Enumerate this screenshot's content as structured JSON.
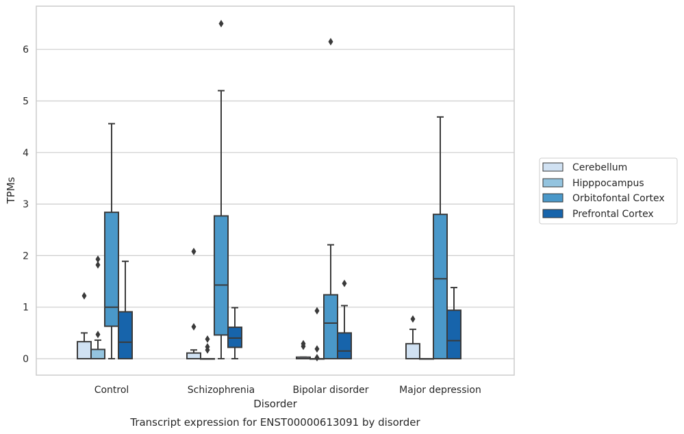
{
  "chart_data": {
    "type": "box",
    "title": "Transcript expression for ENST00000613091 by disorder",
    "xlabel": "Disorder",
    "ylabel": "TPMs",
    "ylim": [
      -0.32,
      6.85
    ],
    "y_ticks": [
      0,
      1,
      2,
      3,
      4,
      5,
      6
    ],
    "grid": "horizontal",
    "legend_position": "right",
    "categories": [
      "Control",
      "Schizophrenia",
      "Bipolar disorder",
      "Major depression"
    ],
    "series": [
      {
        "name": "Cerebellum",
        "color": "#d0e1f2",
        "boxes": [
          {
            "q1": 0,
            "median": 0,
            "q3": 0.33,
            "whisker_low": 0,
            "whisker_high": 0.5,
            "outliers": [
              1.22
            ]
          },
          {
            "q1": 0,
            "median": 0,
            "q3": 0.11,
            "whisker_low": 0,
            "whisker_high": 0.17,
            "outliers": [
              0.62,
              2.08
            ]
          },
          {
            "q1": 0,
            "median": 0,
            "q3": 0.03,
            "whisker_low": 0,
            "whisker_high": 0.03,
            "outliers": [
              0.24,
              0.29
            ]
          },
          {
            "q1": 0,
            "median": 0,
            "q3": 0.29,
            "whisker_low": 0,
            "whisker_high": 0.57,
            "outliers": [
              0.77
            ]
          }
        ]
      },
      {
        "name": "Hipppocampus",
        "color": "#94c4df",
        "boxes": [
          {
            "q1": 0,
            "median": 0,
            "q3": 0.18,
            "whisker_low": 0,
            "whisker_high": 0.36,
            "outliers": [
              0.47,
              1.82,
              1.93
            ]
          },
          {
            "q1": 0,
            "median": 0,
            "q3": 0,
            "whisker_low": 0,
            "whisker_high": 0,
            "outliers": [
              0.17,
              0.23,
              0.38
            ]
          },
          {
            "q1": 0,
            "median": 0,
            "q3": 0,
            "whisker_low": 0,
            "whisker_high": 0,
            "outliers": [
              0.02,
              0.19,
              0.93
            ]
          },
          {
            "q1": 0,
            "median": 0,
            "q3": 0,
            "whisker_low": 0,
            "whisker_high": 0,
            "outliers": []
          }
        ]
      },
      {
        "name": "Orbitofontal Cortex",
        "color": "#4a98c9",
        "boxes": [
          {
            "q1": 0.63,
            "median": 1.0,
            "q3": 2.84,
            "whisker_low": 0,
            "whisker_high": 4.56,
            "outliers": []
          },
          {
            "q1": 0.46,
            "median": 1.43,
            "q3": 2.77,
            "whisker_low": 0,
            "whisker_high": 5.2,
            "outliers": [
              6.5
            ]
          },
          {
            "q1": 0,
            "median": 0.69,
            "q3": 1.24,
            "whisker_low": 0,
            "whisker_high": 2.21,
            "outliers": [
              6.15
            ]
          },
          {
            "q1": 0,
            "median": 1.55,
            "q3": 2.8,
            "whisker_low": 0,
            "whisker_high": 4.69,
            "outliers": []
          }
        ]
      },
      {
        "name": "Prefrontal Cortex",
        "color": "#1764ab",
        "boxes": [
          {
            "q1": 0,
            "median": 0.32,
            "q3": 0.91,
            "whisker_low": 0,
            "whisker_high": 1.89,
            "outliers": []
          },
          {
            "q1": 0.22,
            "median": 0.4,
            "q3": 0.61,
            "whisker_low": 0,
            "whisker_high": 0.99,
            "outliers": []
          },
          {
            "q1": 0,
            "median": 0.15,
            "q3": 0.5,
            "whisker_low": 0,
            "whisker_high": 1.03,
            "outliers": [
              1.46
            ]
          },
          {
            "q1": 0,
            "median": 0.35,
            "q3": 0.94,
            "whisker_low": 0,
            "whisker_high": 1.38,
            "outliers": []
          }
        ]
      }
    ]
  }
}
